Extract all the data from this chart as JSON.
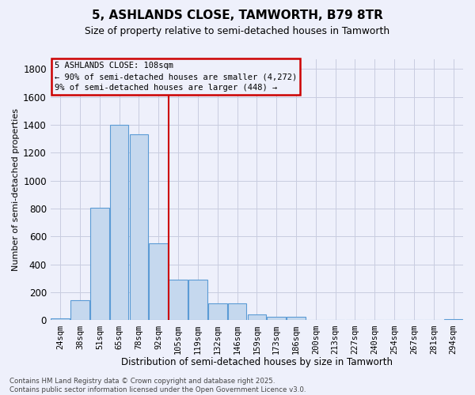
{
  "title_line1": "5, ASHLANDS CLOSE, TAMWORTH, B79 8TR",
  "title_line2": "Size of property relative to semi-detached houses in Tamworth",
  "xlabel": "Distribution of semi-detached houses by size in Tamworth",
  "ylabel": "Number of semi-detached properties",
  "categories": [
    "24sqm",
    "38sqm",
    "51sqm",
    "65sqm",
    "78sqm",
    "92sqm",
    "105sqm",
    "119sqm",
    "132sqm",
    "146sqm",
    "159sqm",
    "173sqm",
    "186sqm",
    "200sqm",
    "213sqm",
    "227sqm",
    "240sqm",
    "254sqm",
    "267sqm",
    "281sqm",
    "294sqm"
  ],
  "values": [
    15,
    145,
    805,
    1400,
    1330,
    550,
    290,
    290,
    120,
    120,
    45,
    25,
    25,
    0,
    0,
    0,
    0,
    0,
    0,
    0,
    10
  ],
  "bar_color": "#c5d8ee",
  "bar_edge_color": "#5b9bd5",
  "background_color": "#eef0fb",
  "grid_color": "#c8cce0",
  "vline_x_index": 6,
  "annotation_title": "5 ASHLANDS CLOSE: 108sqm",
  "annotation_line2": "← 90% of semi-detached houses are smaller (4,272)",
  "annotation_line3": "9% of semi-detached houses are larger (448) →",
  "annotation_box_edgecolor": "#cc0000",
  "vline_color": "#cc0000",
  "footer_line1": "Contains HM Land Registry data © Crown copyright and database right 2025.",
  "footer_line2": "Contains public sector information licensed under the Open Government Licence v3.0.",
  "ylim": [
    0,
    1870
  ],
  "yticks": [
    0,
    200,
    400,
    600,
    800,
    1000,
    1200,
    1400,
    1600,
    1800
  ],
  "figsize": [
    6.0,
    5.0
  ],
  "dpi": 100
}
